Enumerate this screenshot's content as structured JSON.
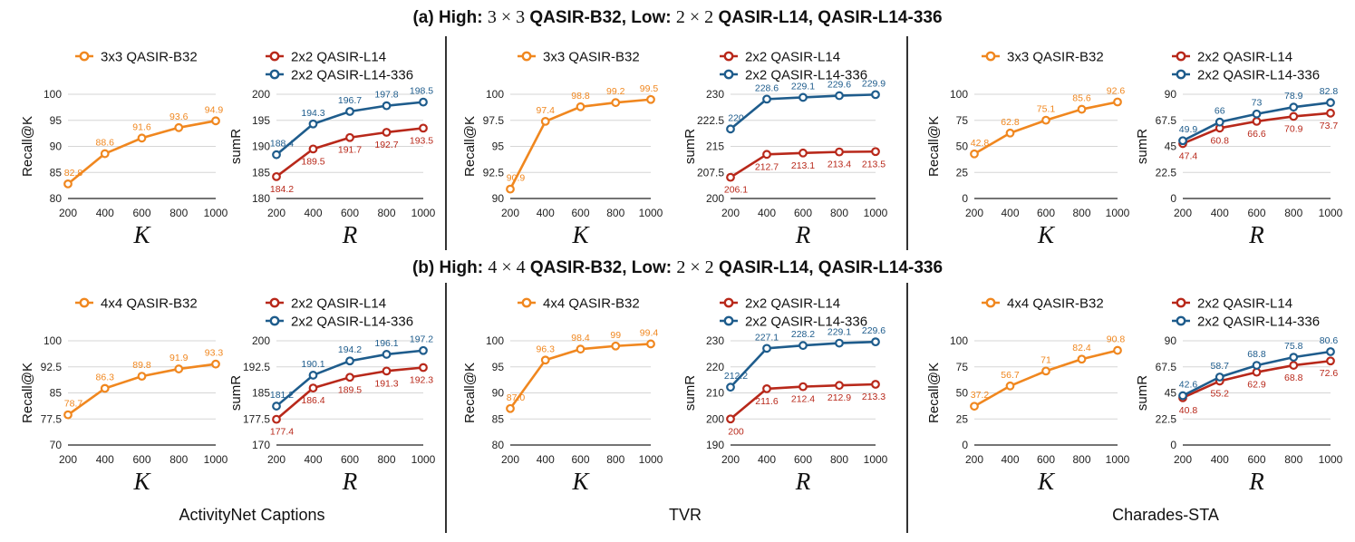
{
  "colors": {
    "orange": "#f0871f",
    "red": "#b8281a",
    "blue": "#1e5c8c",
    "grid": "#d6d6d6",
    "axis": "#222222",
    "orangeDark": "#e8751a"
  },
  "titles": {
    "a": {
      "prefix": "(a) High: ",
      "m1": "3 × 3",
      "mid": " QASIR-B32, Low: ",
      "m2": "2 × 2",
      "suffix": " QASIR-L14, QASIR-L14-336"
    },
    "b": {
      "prefix": "(b) High: ",
      "m1": "4 × 4",
      "mid": " QASIR-B32, Low: ",
      "m2": "2 × 2",
      "suffix": " QASIR-L14, QASIR-L14-336"
    }
  },
  "datasets": [
    "ActivityNet Captions",
    "TVR",
    "Charades-STA"
  ],
  "chart_data": [
    {
      "id": "a-anet-k",
      "type": "line",
      "xlabel": "K",
      "ylabel": "Recall@K",
      "x": [
        200,
        400,
        600,
        800,
        1000
      ],
      "ylim": [
        80,
        100
      ],
      "yticks": [
        "80",
        "85",
        "90",
        "95",
        "100"
      ],
      "series": [
        {
          "name": "3x3 QASIR-B32",
          "color": "orange",
          "values": [
            82.8,
            88.6,
            91.6,
            93.6,
            94.9
          ],
          "labels": [
            "82.8",
            "88.6",
            "91.6",
            "93.6",
            "94.9"
          ],
          "pos": "above"
        }
      ]
    },
    {
      "id": "a-anet-r",
      "type": "line",
      "xlabel": "R",
      "ylabel": "sumR",
      "x": [
        200,
        400,
        600,
        800,
        1000
      ],
      "ylim": [
        180,
        200
      ],
      "yticks": [
        "180",
        "185",
        "190",
        "195",
        "200"
      ],
      "series": [
        {
          "name": "2x2 QASIR-L14",
          "color": "red",
          "values": [
            184.2,
            189.5,
            191.7,
            192.7,
            193.5
          ],
          "labels": [
            "184.2",
            "189.5",
            "191.7",
            "192.7",
            "193.5"
          ],
          "pos": "below"
        },
        {
          "name": "2x2 QASIR-L14-336",
          "color": "blue",
          "values": [
            188.4,
            194.3,
            196.7,
            197.8,
            198.5
          ],
          "labels": [
            "188.4",
            "194.3",
            "196.7",
            "197.8",
            "198.5"
          ],
          "pos": "above"
        }
      ]
    },
    {
      "id": "a-tvr-k",
      "type": "line",
      "xlabel": "K",
      "ylabel": "Recall@K",
      "x": [
        200,
        400,
        600,
        800,
        1000
      ],
      "ylim": [
        90,
        100
      ],
      "yticks": [
        "90",
        "92.5",
        "95",
        "97.5",
        "100"
      ],
      "series": [
        {
          "name": "3x3 QASIR-B32",
          "color": "orange",
          "values": [
            90.9,
            97.4,
            98.8,
            99.2,
            99.5
          ],
          "labels": [
            "90.9",
            "97.4",
            "98.8",
            "99.2",
            "99.5"
          ],
          "pos": "above"
        }
      ]
    },
    {
      "id": "a-tvr-r",
      "type": "line",
      "xlabel": "R",
      "ylabel": "sumR",
      "x": [
        200,
        400,
        600,
        800,
        1000
      ],
      "ylim": [
        200,
        230
      ],
      "yticks": [
        "200",
        "207.5",
        "215",
        "222.5",
        "230"
      ],
      "series": [
        {
          "name": "2x2 QASIR-L14",
          "color": "red",
          "values": [
            206.1,
            212.7,
            213.1,
            213.4,
            213.5
          ],
          "labels": [
            "206.1",
            "212.7",
            "213.1",
            "213.4",
            "213.5"
          ],
          "pos": "below"
        },
        {
          "name": "2x2 QASIR-L14-336",
          "color": "blue",
          "values": [
            220,
            228.6,
            229.1,
            229.6,
            229.9
          ],
          "labels": [
            "220",
            "228.6",
            "229.1",
            "229.6",
            "229.9"
          ],
          "pos": "above"
        }
      ]
    },
    {
      "id": "a-cha-k",
      "type": "line",
      "xlabel": "K",
      "ylabel": "Recall@K",
      "x": [
        200,
        400,
        600,
        800,
        1000
      ],
      "ylim": [
        0,
        100
      ],
      "yticks": [
        "0",
        "25",
        "50",
        "75",
        "100"
      ],
      "series": [
        {
          "name": "3x3 QASIR-B32",
          "color": "orange",
          "values": [
            42.8,
            62.8,
            75.1,
            85.6,
            92.6
          ],
          "labels": [
            "42.8",
            "62.8",
            "75.1",
            "85.6",
            "92.6"
          ],
          "pos": "above"
        }
      ]
    },
    {
      "id": "a-cha-r",
      "type": "line",
      "xlabel": "R",
      "ylabel": "sumR",
      "x": [
        200,
        400,
        600,
        800,
        1000
      ],
      "ylim": [
        0,
        90
      ],
      "yticks": [
        "0",
        "22.5",
        "45",
        "67.5",
        "90"
      ],
      "series": [
        {
          "name": "2x2 QASIR-L14",
          "color": "red",
          "values": [
            47.4,
            60.8,
            66.6,
            70.9,
            73.7
          ],
          "labels": [
            "47.4",
            "60.8",
            "66.6",
            "70.9",
            "73.7"
          ],
          "pos": "below"
        },
        {
          "name": "2x2 QASIR-L14-336",
          "color": "blue",
          "values": [
            49.9,
            66,
            73,
            78.9,
            82.8
          ],
          "labels": [
            "49.9",
            "66",
            "73",
            "78.9",
            "82.8"
          ],
          "pos": "above"
        }
      ]
    },
    {
      "id": "b-anet-k",
      "type": "line",
      "xlabel": "K",
      "ylabel": "Recall@K",
      "x": [
        200,
        400,
        600,
        800,
        1000
      ],
      "ylim": [
        70,
        100
      ],
      "yticks": [
        "70",
        "77.5",
        "85",
        "92.5",
        "100"
      ],
      "series": [
        {
          "name": "4x4 QASIR-B32",
          "color": "orange",
          "values": [
            78.7,
            86.3,
            89.8,
            91.9,
            93.3
          ],
          "labels": [
            "78.7",
            "86.3",
            "89.8",
            "91.9",
            "93.3"
          ],
          "pos": "above"
        }
      ]
    },
    {
      "id": "b-anet-r",
      "type": "line",
      "xlabel": "R",
      "ylabel": "sumR",
      "x": [
        200,
        400,
        600,
        800,
        1000
      ],
      "ylim": [
        170,
        200
      ],
      "yticks": [
        "170",
        "177.5",
        "185",
        "192.5",
        "200"
      ],
      "series": [
        {
          "name": "2x2 QASIR-L14",
          "color": "red",
          "values": [
            177.4,
            186.4,
            189.5,
            191.3,
            192.3
          ],
          "labels": [
            "177.4",
            "186.4",
            "189.5",
            "191.3",
            "192.3"
          ],
          "pos": "below"
        },
        {
          "name": "2x2 QASIR-L14-336",
          "color": "blue",
          "values": [
            181.2,
            190.1,
            194.2,
            196.1,
            197.2
          ],
          "labels": [
            "181.2",
            "190.1",
            "194.2",
            "196.1",
            "197.2"
          ],
          "pos": "above"
        }
      ]
    },
    {
      "id": "b-tvr-k",
      "type": "line",
      "xlabel": "K",
      "ylabel": "Recall@K",
      "x": [
        200,
        400,
        600,
        800,
        1000
      ],
      "ylim": [
        80,
        100
      ],
      "yticks": [
        "80",
        "85",
        "90",
        "95",
        "100"
      ],
      "series": [
        {
          "name": "4x4 QASIR-B32",
          "color": "orange",
          "values": [
            87.0,
            96.3,
            98.4,
            99,
            99.4
          ],
          "labels": [
            "87.0",
            "96.3",
            "98.4",
            "99",
            "99.4"
          ],
          "pos": "above"
        }
      ]
    },
    {
      "id": "b-tvr-r",
      "type": "line",
      "xlabel": "R",
      "ylabel": "sumR",
      "x": [
        200,
        400,
        600,
        800,
        1000
      ],
      "ylim": [
        190,
        230
      ],
      "yticks": [
        "190",
        "200",
        "210",
        "220",
        "230"
      ],
      "series": [
        {
          "name": "2x2 QASIR-L14",
          "color": "red",
          "values": [
            200,
            211.6,
            212.4,
            212.9,
            213.3
          ],
          "labels": [
            "200",
            "211.6",
            "212.4",
            "212.9",
            "213.3"
          ],
          "pos": "below"
        },
        {
          "name": "2x2 QASIR-L14-336",
          "color": "blue",
          "values": [
            212.2,
            227.1,
            228.2,
            229.1,
            229.6
          ],
          "labels": [
            "212.2",
            "227.1",
            "228.2",
            "229.1",
            "229.6"
          ],
          "pos": "above"
        }
      ]
    },
    {
      "id": "b-cha-k",
      "type": "line",
      "xlabel": "K",
      "ylabel": "Recall@K",
      "x": [
        200,
        400,
        600,
        800,
        1000
      ],
      "ylim": [
        0,
        100
      ],
      "yticks": [
        "0",
        "25",
        "50",
        "75",
        "100"
      ],
      "series": [
        {
          "name": "4x4 QASIR-B32",
          "color": "orange",
          "values": [
            37.2,
            56.7,
            71,
            82.4,
            90.8
          ],
          "labels": [
            "37.2",
            "56.7",
            "71",
            "82.4",
            "90.8"
          ],
          "pos": "above"
        }
      ]
    },
    {
      "id": "b-cha-r",
      "type": "line",
      "xlabel": "R",
      "ylabel": "sumR",
      "x": [
        200,
        400,
        600,
        800,
        1000
      ],
      "ylim": [
        0,
        90
      ],
      "yticks": [
        "0",
        "22.5",
        "45",
        "67.5",
        "90"
      ],
      "series": [
        {
          "name": "2x2 QASIR-L14",
          "color": "red",
          "values": [
            40.8,
            55.2,
            62.9,
            68.8,
            72.6
          ],
          "labels": [
            "40.8",
            "55.2",
            "62.9",
            "68.8",
            "72.6"
          ],
          "pos": "below"
        },
        {
          "name": "2x2 QASIR-L14-336",
          "color": "blue",
          "values": [
            42.6,
            58.7,
            68.8,
            75.8,
            80.6
          ],
          "labels": [
            "42.6",
            "58.7",
            "68.8",
            "75.8",
            "80.6"
          ],
          "pos": "above"
        }
      ]
    }
  ]
}
